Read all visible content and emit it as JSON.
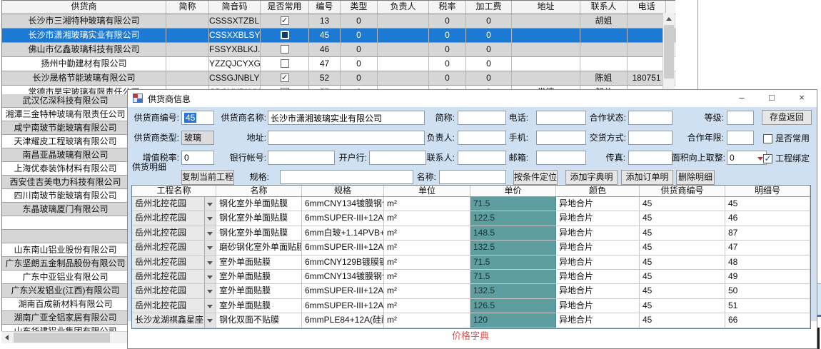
{
  "colors": {
    "selection_blue": "#1d7ad4",
    "dialog_bg": "#cfe0f3",
    "unit_price_cell_teal": "#5f9ea0",
    "footer_red": "#d9534f"
  },
  "suppliers_grid": {
    "columns": [
      "供货商",
      "简称",
      "简音码",
      "是否常用",
      "编号",
      "类型",
      "负责人",
      "税率",
      "加工费",
      "地址",
      "联系人",
      "电话"
    ],
    "rows": [
      {
        "cells": [
          "长沙市三湘特种玻璃有限公司",
          "",
          "CSSSXTZBL..",
          "",
          "13",
          "0",
          "",
          "0",
          "0",
          "",
          "胡姐",
          ""
        ],
        "checked": true,
        "selected": false
      },
      {
        "cells": [
          "长沙市潇湘玻璃实业有限公司",
          "",
          "CSSXXBLSY..",
          "",
          "45",
          "0",
          "",
          "0",
          "0",
          "",
          "",
          ""
        ],
        "checked": false,
        "selected": true
      },
      {
        "cells": [
          "佛山市亿鑫玻璃科技有限公司",
          "",
          "FSSYXBLKJ..",
          "",
          "46",
          "0",
          "",
          "0",
          "0",
          "",
          "",
          ""
        ],
        "checked": false,
        "selected": false
      },
      {
        "cells": [
          "扬州中勤建材有限公司",
          "",
          "YZZQJCYXGS",
          "",
          "47",
          "0",
          "",
          "0",
          "0",
          "",
          "",
          ""
        ],
        "checked": false,
        "selected": false
      },
      {
        "cells": [
          "长沙晟格节能玻璃有限公司",
          "",
          "CSSGJNBLYXGS",
          "",
          "52",
          "0",
          "",
          "0",
          "0",
          "",
          "陈姐",
          "180751"
        ],
        "checked": true,
        "selected": false
      },
      {
        "cells": [
          "常德市昊宇玻璃有限责任公司",
          "",
          "CDSHYBLYX",
          "",
          "57",
          "0",
          "",
          "0",
          "0",
          "常德",
          "邹总",
          ""
        ],
        "checked": true,
        "selected": false
      }
    ],
    "left_list": [
      "武汉亿深科技有限公司",
      "湘潭三金特种玻璃有限责任公司",
      "咸宁南玻节能玻璃有限公司",
      "天津耀皮工程玻璃有限公司",
      "南昌亚晶玻璃有限公司",
      "上海优泰装饰材料有限公司",
      "西安佳吉美电力科技有限公司",
      "四川南玻节能玻璃有限公司",
      "东晶玻璃厦门有限公司",
      "",
      "",
      "山东南山铝业股份有限公司",
      "广东坚朗五金制品股份有限公司",
      "广东中亚铝业有限公司",
      "广东兴发铝业(江西)有限公司",
      "湖南百成新材料有限公司",
      "湖南广亚全铝家居有限公司",
      "山东华建铝业集团有限公司"
    ]
  },
  "dialog": {
    "title": "供货商信息",
    "titlebar": {
      "minimize": "–",
      "maximize": "□",
      "close": "×"
    },
    "form": {
      "supplier_no_label": "供货商编号:",
      "supplier_no": "45",
      "name_label": "供货商名称:",
      "name": "长沙市潇湘玻璃实业有限公司",
      "short_label": "简称:",
      "short": "",
      "phone_label": "电话:",
      "phone": "",
      "coop_status_label": "合作状态:",
      "coop_status": "",
      "grade_label": "等级:",
      "grade": "",
      "save_button": "存盘返回",
      "type_label": "供货商类型:",
      "type": "玻璃",
      "addr_label": "地址:",
      "addr": "",
      "manager_label": "负责人:",
      "manager": "",
      "mobile_label": "手机:",
      "mobile": "",
      "delivery_label": "交货方式:",
      "delivery": "",
      "coop_years_label": "合作年限:",
      "coop_years": "",
      "common_check_label": "是否常用",
      "common_checked": false,
      "vat_label": "增值税率:",
      "vat": "0",
      "bank_acct_label": "银行帐号:",
      "bank_acct": "",
      "bank_label": "开户行:",
      "bank": "",
      "contact_label": "联系人:",
      "contact": "",
      "email_label": "邮箱:",
      "email": "",
      "fax_label": "传真:",
      "fax": "",
      "area_round_label": "面积向上取整:",
      "area_round": "0",
      "binding_check_label": "工程绑定",
      "binding_checked": true
    },
    "detail": {
      "section_label": "供货明细",
      "copy_button": "复制当前工程",
      "spec_label": "规格:",
      "spec_value": "",
      "name_label": "名称:",
      "name_value": "",
      "locate_button": "按条件定位",
      "add_dict_button": "添加字典明细",
      "add_order_button": "添加订单明细",
      "delete_button": "删除明细",
      "grid": {
        "columns": [
          "工程名称",
          "名称",
          "规格",
          "单位",
          "单价",
          "颜色",
          "供货商编号",
          "明细号"
        ],
        "rows": [
          [
            "岳州北控花园",
            "钢化室外单面贴膜",
            "6mmCNY134镀膜钢化",
            "m²",
            "71.5",
            "异地合片",
            "45",
            "45"
          ],
          [
            "岳州北控花园",
            "钢化室外单面贴膜",
            "6mmSUPER-III+12A(硅..",
            "m²",
            "122.5",
            "异地合片",
            "45",
            "46"
          ],
          [
            "岳州北控花园",
            "钢化室外单面贴膜",
            "6mm白玻+1.14PVB+6mm..",
            "m²",
            "148.5",
            "异地合片",
            "45",
            "87"
          ],
          [
            "岳州北控花园",
            "磨砂钢化室外单面贴膜",
            "6mmSUPER-III+12A(硅..",
            "m²",
            "132.5",
            "异地合片",
            "45",
            "47"
          ],
          [
            "岳州北控花园",
            "室外单面贴膜",
            "6mmCNY129B镀膜钢化",
            "m²",
            "71.5",
            "异地合片",
            "45",
            "48"
          ],
          [
            "岳州北控花园",
            "室外单面贴膜",
            "6mmCNY134镀膜钢化",
            "m²",
            "71.5",
            "异地合片",
            "45",
            "49"
          ],
          [
            "岳州北控花园",
            "室外单面贴膜",
            "6mmSUPER-III+12A(硅..",
            "m²",
            "132.5",
            "异地合片",
            "45",
            "50"
          ],
          [
            "岳州北控花园",
            "室外单面贴膜",
            "6mmSUPER-III+12A(硅..",
            "m²",
            "126.5",
            "异地合片",
            "45",
            "51"
          ],
          [
            "长沙龙湖祺鑫星座",
            "钢化双面不贴膜",
            "6mmPLE84+12A(硅酮胶..",
            "m²",
            "120",
            "异地合片",
            "45",
            "66"
          ]
        ]
      },
      "footer_label": "价格字典"
    }
  }
}
